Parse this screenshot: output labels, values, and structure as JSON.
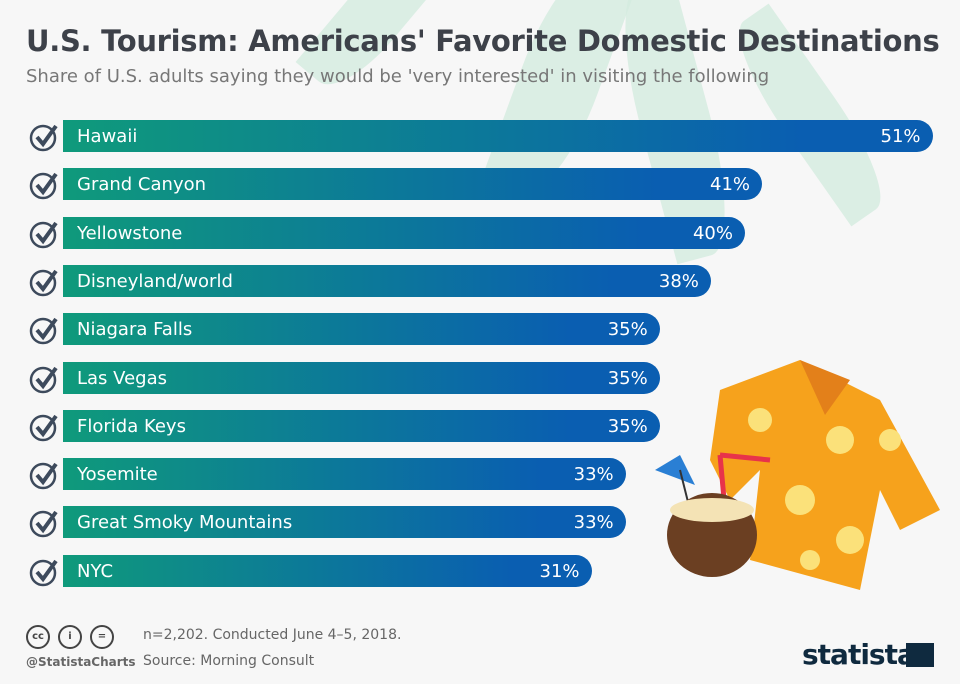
{
  "header": {
    "title": "U.S. Tourism: Americans' Favorite Domestic Destinations",
    "subtitle": "Share of U.S. adults saying they would be 'very interested' in visiting the following"
  },
  "chart_data": {
    "type": "bar",
    "orientation": "horizontal",
    "title": "U.S. Tourism: Americans' Favorite Domestic Destinations",
    "categories": [
      "Hawaii",
      "Grand Canyon",
      "Yellowstone",
      "Disneyland/world",
      "Niagara Falls",
      "Las Vegas",
      "Florida Keys",
      "Yosemite",
      "Great Smoky Mountains",
      "NYC"
    ],
    "values": [
      51,
      41,
      40,
      38,
      35,
      35,
      35,
      33,
      33,
      31
    ],
    "labels": [
      "51%",
      "41%",
      "40%",
      "38%",
      "35%",
      "35%",
      "35%",
      "33%",
      "33%",
      "31%"
    ],
    "unit": "%",
    "colors": {
      "start": "#0f9a7b",
      "end": "#0a5eb1"
    }
  },
  "footer": {
    "note": "n=2,202. Conducted June 4–5, 2018.",
    "source": "Source: Morning Consult",
    "handle": "@StatistaCharts",
    "brand": "statista",
    "cc_icons": [
      "cc",
      "by",
      "nd"
    ]
  }
}
